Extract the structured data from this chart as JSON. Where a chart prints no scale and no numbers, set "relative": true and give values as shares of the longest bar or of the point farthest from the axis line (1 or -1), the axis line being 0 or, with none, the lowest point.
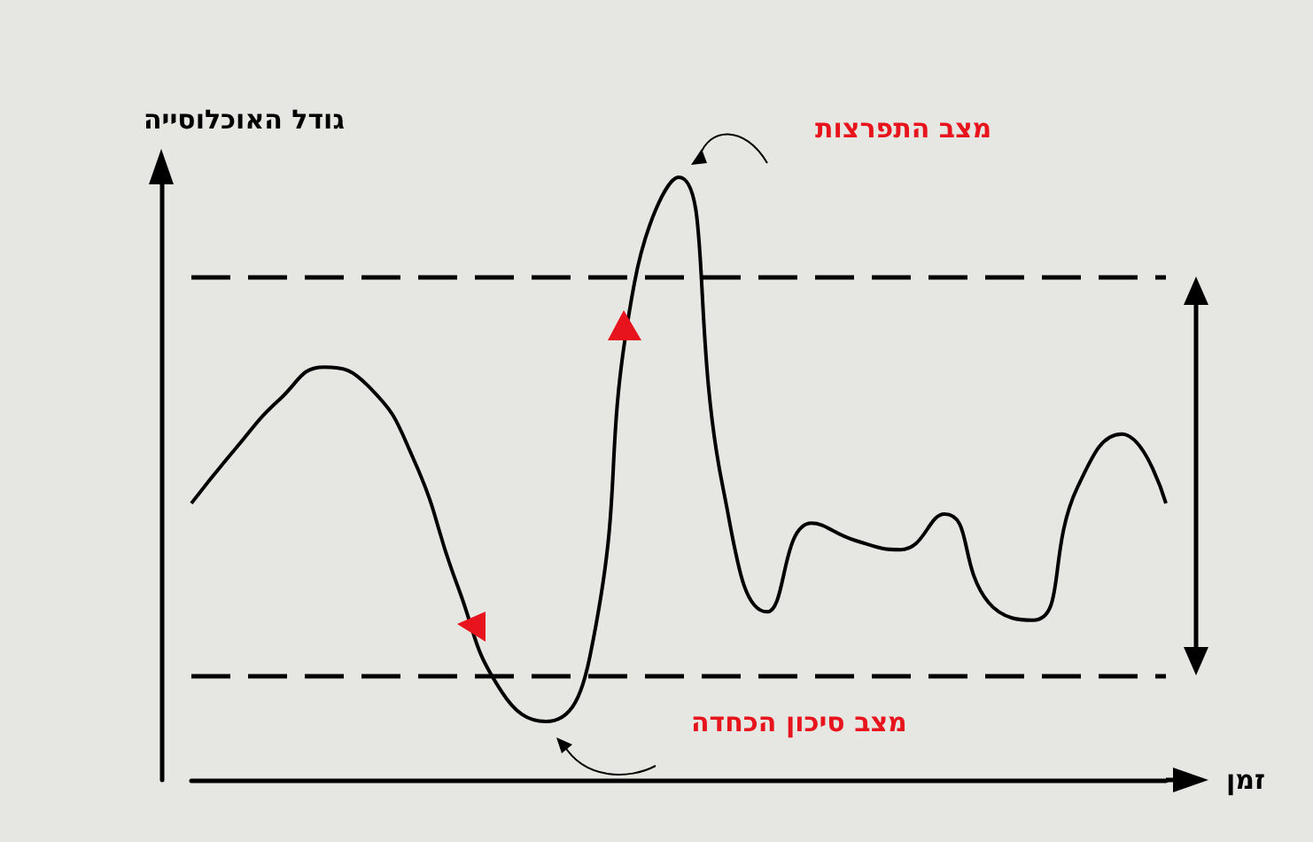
{
  "chart_data": {
    "type": "line",
    "relative": true,
    "xlabel": "זמן",
    "ylabel": "גודל האוכלוסייה",
    "categories": [
      null,
      null,
      null,
      null,
      null,
      null,
      null,
      null,
      null,
      null,
      null,
      null,
      null,
      null,
      null,
      null,
      null,
      null,
      null,
      null,
      null,
      null,
      null
    ],
    "series": [
      {
        "color": "#000000",
        "values": [
          0.459,
          0.55,
          0.632,
          0.685,
          0.653,
          0.535,
          0.324,
          0.147,
          0.097,
          0.206,
          0.824,
          1,
          0.485,
          0.279,
          0.426,
          0.397,
          0.382,
          0.441,
          0.294,
          0.265,
          0.485,
          0.574,
          0.459
        ]
      }
    ],
    "ref_lines": [
      {
        "axis": "y",
        "value": 0.835,
        "color": "#000000",
        "line_style": "dashed"
      },
      {
        "axis": "y",
        "value": 0.174,
        "color": "#000000",
        "line_style": "dashed"
      }
    ],
    "annotations": [
      "מצב התפרצות",
      "מצב סיכון הכחדה"
    ],
    "marker": "none",
    "line_style": "solid",
    "grid": false
  }
}
